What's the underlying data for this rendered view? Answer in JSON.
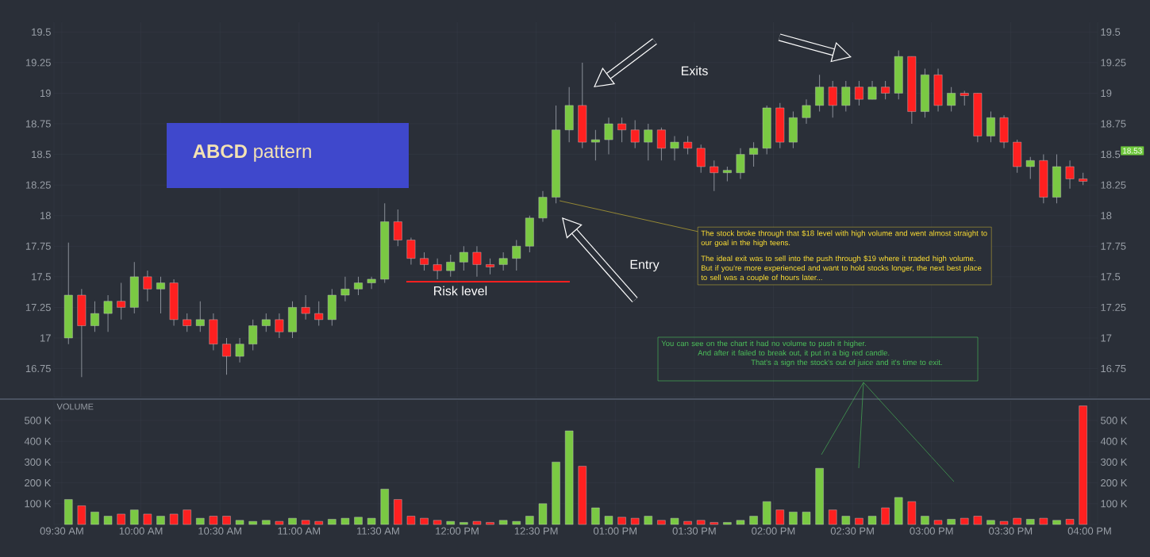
{
  "chart_data": [
    {
      "type": "candlestick",
      "x": [
        9.5417,
        9.625,
        9.7083,
        9.7917,
        9.875,
        9.9583,
        10.0417,
        10.125,
        10.2083,
        10.2917,
        10.375,
        10.4583,
        10.5417,
        10.625,
        10.7083,
        10.7917,
        10.875,
        10.9583,
        11.0417,
        11.125,
        11.2083,
        11.2917,
        11.375,
        11.4583,
        11.5417,
        11.625,
        11.7083,
        11.7917,
        11.875,
        11.9583,
        12.0417,
        12.125,
        12.2083,
        12.2917,
        12.375,
        12.4583,
        12.5417,
        12.625,
        12.7083,
        12.7917,
        12.875,
        12.9583,
        13.0417,
        13.125,
        13.2083,
        13.2917,
        13.375,
        13.4583,
        13.5417,
        13.625,
        13.7083,
        13.7917,
        13.875,
        13.9583,
        14.0417,
        14.125,
        14.2083,
        14.2917,
        14.375,
        14.4583,
        14.5417,
        14.625,
        14.7083,
        14.7917,
        14.875,
        14.9583,
        15.0417,
        15.125,
        15.2083,
        15.2917,
        15.375,
        15.4583,
        15.5417,
        15.625,
        15.7083,
        15.7917,
        15.875,
        15.9583
      ],
      "ohlc": [
        [
          17.0,
          17.78,
          16.95,
          17.35
        ],
        [
          17.35,
          17.4,
          16.68,
          17.1
        ],
        [
          17.1,
          17.3,
          17.05,
          17.2
        ],
        [
          17.2,
          17.35,
          17.05,
          17.3
        ],
        [
          17.3,
          17.45,
          17.15,
          17.25
        ],
        [
          17.25,
          17.62,
          17.2,
          17.5
        ],
        [
          17.5,
          17.55,
          17.3,
          17.4
        ],
        [
          17.4,
          17.5,
          17.2,
          17.45
        ],
        [
          17.45,
          17.48,
          17.1,
          17.15
        ],
        [
          17.15,
          17.2,
          17.05,
          17.1
        ],
        [
          17.1,
          17.3,
          17.05,
          17.15
        ],
        [
          17.15,
          17.2,
          16.9,
          16.95
        ],
        [
          16.95,
          17.0,
          16.7,
          16.85
        ],
        [
          16.85,
          17.0,
          16.8,
          16.95
        ],
        [
          16.95,
          17.15,
          16.9,
          17.1
        ],
        [
          17.1,
          17.2,
          17.05,
          17.15
        ],
        [
          17.15,
          17.2,
          17.0,
          17.05
        ],
        [
          17.05,
          17.3,
          17.0,
          17.25
        ],
        [
          17.25,
          17.35,
          17.15,
          17.2
        ],
        [
          17.2,
          17.3,
          17.1,
          17.15
        ],
        [
          17.15,
          17.4,
          17.1,
          17.35
        ],
        [
          17.35,
          17.5,
          17.3,
          17.4
        ],
        [
          17.4,
          17.5,
          17.35,
          17.45
        ],
        [
          17.45,
          17.5,
          17.4,
          17.48
        ],
        [
          17.48,
          18.1,
          17.45,
          17.95
        ],
        [
          17.95,
          18.05,
          17.75,
          17.8
        ],
        [
          17.8,
          17.82,
          17.6,
          17.65
        ],
        [
          17.65,
          17.7,
          17.55,
          17.6
        ],
        [
          17.6,
          17.65,
          17.48,
          17.55
        ],
        [
          17.55,
          17.68,
          17.5,
          17.62
        ],
        [
          17.62,
          17.75,
          17.55,
          17.7
        ],
        [
          17.7,
          17.75,
          17.5,
          17.6
        ],
        [
          17.6,
          17.65,
          17.52,
          17.58
        ],
        [
          17.6,
          17.7,
          17.55,
          17.65
        ],
        [
          17.65,
          17.8,
          17.55,
          17.75
        ],
        [
          17.75,
          18.0,
          17.7,
          17.98
        ],
        [
          17.98,
          18.2,
          17.95,
          18.15
        ],
        [
          18.15,
          18.9,
          18.1,
          18.7
        ],
        [
          18.7,
          19.05,
          18.6,
          18.9
        ],
        [
          18.9,
          19.25,
          18.55,
          18.6
        ],
        [
          18.6,
          18.7,
          18.45,
          18.62
        ],
        [
          18.62,
          18.8,
          18.5,
          18.75
        ],
        [
          18.75,
          18.8,
          18.6,
          18.7
        ],
        [
          18.7,
          18.78,
          18.55,
          18.6
        ],
        [
          18.6,
          18.75,
          18.45,
          18.7
        ],
        [
          18.7,
          18.72,
          18.45,
          18.55
        ],
        [
          18.55,
          18.65,
          18.45,
          18.6
        ],
        [
          18.6,
          18.65,
          18.5,
          18.55
        ],
        [
          18.55,
          18.58,
          18.35,
          18.4
        ],
        [
          18.4,
          18.45,
          18.2,
          18.35
        ],
        [
          18.35,
          18.4,
          18.28,
          18.37
        ],
        [
          18.35,
          18.55,
          18.3,
          18.5
        ],
        [
          18.5,
          18.6,
          18.4,
          18.55
        ],
        [
          18.55,
          18.9,
          18.5,
          18.88
        ],
        [
          18.88,
          18.92,
          18.55,
          18.6
        ],
        [
          18.6,
          18.85,
          18.55,
          18.8
        ],
        [
          18.8,
          18.95,
          18.75,
          18.9
        ],
        [
          18.9,
          19.15,
          18.85,
          19.05
        ],
        [
          19.05,
          19.1,
          18.8,
          18.9
        ],
        [
          18.9,
          19.1,
          18.85,
          19.05
        ],
        [
          19.05,
          19.1,
          18.9,
          18.95
        ],
        [
          18.95,
          19.1,
          18.95,
          19.05
        ],
        [
          19.05,
          19.1,
          18.95,
          19.0
        ],
        [
          19.0,
          19.35,
          18.95,
          19.3
        ],
        [
          19.3,
          19.3,
          18.75,
          18.85
        ],
        [
          18.85,
          19.2,
          18.8,
          19.15
        ],
        [
          19.15,
          19.2,
          18.85,
          18.9
        ],
        [
          18.9,
          19.05,
          18.85,
          19.0
        ],
        [
          19.0,
          19.02,
          18.9,
          18.98
        ],
        [
          19.0,
          19.0,
          18.6,
          18.65
        ],
        [
          18.65,
          18.85,
          18.6,
          18.8
        ],
        [
          18.8,
          18.82,
          18.55,
          18.6
        ],
        [
          18.6,
          18.62,
          18.35,
          18.4
        ],
        [
          18.4,
          18.48,
          18.3,
          18.45
        ],
        [
          18.45,
          18.5,
          18.1,
          18.15
        ],
        [
          18.15,
          18.5,
          18.1,
          18.4
        ],
        [
          18.4,
          18.45,
          18.22,
          18.3
        ],
        [
          18.3,
          18.35,
          18.25,
          18.28
        ]
      ],
      "colors": [
        "#7ac943",
        "#ff2020",
        "#7ac943",
        "#7ac943",
        "#ff2020",
        "#7ac943",
        "#ff2020",
        "#7ac943",
        "#ff2020",
        "#ff2020",
        "#7ac943",
        "#ff2020",
        "#ff2020",
        "#7ac943",
        "#7ac943",
        "#7ac943",
        "#ff2020",
        "#7ac943",
        "#ff2020",
        "#ff2020",
        "#7ac943",
        "#7ac943",
        "#7ac943",
        "#7ac943",
        "#7ac943",
        "#ff2020",
        "#ff2020",
        "#ff2020",
        "#ff2020",
        "#7ac943",
        "#7ac943",
        "#ff2020",
        "#ff2020",
        "#7ac943",
        "#7ac943",
        "#7ac943",
        "#7ac943",
        "#7ac943",
        "#7ac943",
        "#ff2020",
        "#7ac943",
        "#7ac943",
        "#ff2020",
        "#ff2020",
        "#7ac943",
        "#ff2020",
        "#7ac943",
        "#ff2020",
        "#ff2020",
        "#ff2020",
        "#7ac943",
        "#7ac943",
        "#7ac943",
        "#7ac943",
        "#ff2020",
        "#7ac943",
        "#7ac943",
        "#7ac943",
        "#ff2020",
        "#7ac943",
        "#ff2020",
        "#7ac943",
        "#ff2020",
        "#7ac943",
        "#ff2020",
        "#7ac943",
        "#ff2020",
        "#7ac943",
        "#ff2020",
        "#ff2020",
        "#7ac943",
        "#ff2020",
        "#ff2020",
        "#7ac943",
        "#ff2020",
        "#7ac943",
        "#ff2020",
        "#ff2020"
      ],
      "xlim": [
        9.45,
        16.05
      ],
      "xticks": [
        9.5,
        10,
        10.5,
        11,
        11.5,
        12,
        12.5,
        13,
        13.5,
        14,
        14.5,
        15,
        15.5,
        16
      ],
      "ylim": [
        16.52,
        19.58
      ],
      "yticks": [
        16.75,
        17,
        17.25,
        17.5,
        17.75,
        18,
        18.25,
        18.5,
        18.75,
        19,
        19.25,
        19.5
      ],
      "y2lim": [
        16.52,
        19.58
      ],
      "y2ticks": [
        16.75,
        17,
        17.25,
        17.5,
        17.75,
        18,
        18.25,
        18.5,
        18.75,
        19,
        19.25,
        19.5
      ],
      "tick_labels": "y",
      "grid": true,
      "ref_lines": [
        {
          "axis": "y",
          "value": 17.46,
          "label": "Risk level",
          "color": "#ff2020"
        }
      ],
      "annotations": [
        "**ABCD** pattern",
        "Exits",
        "Entry",
        "The stock broke through that $18 level with high volume and went almost straight to our goal in the high teens.",
        "The ideal exit was to sell into the push through $19 where it traded high volume.",
        "But if you're more experienced and want to hold stocks longer, the next best place to sell was a couple of hours later...",
        "18.53",
        "You can see on the chart it had no volume to push it higher.",
        "And after it failed to break out, it put in a big red candle.",
        "That's a sign the stock's out of juice and it's time to exit."
      ]
    },
    {
      "type": "bar",
      "x": [
        9.5417,
        9.625,
        9.7083,
        9.7917,
        9.875,
        9.9583,
        10.0417,
        10.125,
        10.2083,
        10.2917,
        10.375,
        10.4583,
        10.5417,
        10.625,
        10.7083,
        10.7917,
        10.875,
        10.9583,
        11.0417,
        11.125,
        11.2083,
        11.2917,
        11.375,
        11.4583,
        11.5417,
        11.625,
        11.7083,
        11.7917,
        11.875,
        11.9583,
        12.0417,
        12.125,
        12.2083,
        12.2917,
        12.375,
        12.4583,
        12.5417,
        12.625,
        12.7083,
        12.7917,
        12.875,
        12.9583,
        13.0417,
        13.125,
        13.2083,
        13.2917,
        13.375,
        13.4583,
        13.5417,
        13.625,
        13.7083,
        13.7917,
        13.875,
        13.9583,
        14.0417,
        14.125,
        14.2083,
        14.2917,
        14.375,
        14.4583,
        14.5417,
        14.625,
        14.7083,
        14.7917,
        14.875,
        14.9583,
        15.0417,
        15.125,
        15.2083,
        15.2917,
        15.375,
        15.4583,
        15.5417,
        15.625,
        15.7083,
        15.7917,
        15.875,
        15.9583
      ],
      "values": [
        120000,
        90000,
        60000,
        40000,
        50000,
        70000,
        50000,
        40000,
        50000,
        70000,
        30000,
        40000,
        40000,
        20000,
        15000,
        20000,
        15000,
        30000,
        20000,
        15000,
        25000,
        30000,
        35000,
        30000,
        170000,
        120000,
        40000,
        30000,
        20000,
        15000,
        10000,
        15000,
        10000,
        20000,
        15000,
        40000,
        100000,
        300000,
        450000,
        280000,
        80000,
        40000,
        35000,
        30000,
        40000,
        20000,
        30000,
        15000,
        20000,
        10000,
        10000,
        20000,
        40000,
        110000,
        70000,
        60000,
        60000,
        270000,
        70000,
        40000,
        30000,
        40000,
        80000,
        130000,
        110000,
        40000,
        20000,
        25000,
        30000,
        40000,
        20000,
        15000,
        30000,
        25000,
        30000,
        20000,
        25000,
        570000
      ],
      "colors": [
        "#7ac943",
        "#ff2020",
        "#7ac943",
        "#7ac943",
        "#ff2020",
        "#7ac943",
        "#ff2020",
        "#7ac943",
        "#ff2020",
        "#ff2020",
        "#7ac943",
        "#ff2020",
        "#ff2020",
        "#7ac943",
        "#7ac943",
        "#7ac943",
        "#ff2020",
        "#7ac943",
        "#ff2020",
        "#ff2020",
        "#7ac943",
        "#7ac943",
        "#7ac943",
        "#7ac943",
        "#7ac943",
        "#ff2020",
        "#ff2020",
        "#ff2020",
        "#ff2020",
        "#7ac943",
        "#7ac943",
        "#ff2020",
        "#ff2020",
        "#7ac943",
        "#7ac943",
        "#7ac943",
        "#7ac943",
        "#7ac943",
        "#7ac943",
        "#ff2020",
        "#7ac943",
        "#7ac943",
        "#ff2020",
        "#ff2020",
        "#7ac943",
        "#ff2020",
        "#7ac943",
        "#ff2020",
        "#ff2020",
        "#ff2020",
        "#7ac943",
        "#7ac943",
        "#7ac943",
        "#7ac943",
        "#ff2020",
        "#7ac943",
        "#7ac943",
        "#7ac943",
        "#ff2020",
        "#7ac943",
        "#ff2020",
        "#7ac943",
        "#ff2020",
        "#7ac943",
        "#ff2020",
        "#7ac943",
        "#ff2020",
        "#7ac943",
        "#ff2020",
        "#ff2020",
        "#7ac943",
        "#ff2020",
        "#ff2020",
        "#7ac943",
        "#ff2020",
        "#7ac943",
        "#ff2020",
        "#ff2020"
      ],
      "ylabel": "VOLUME",
      "xlim": [
        9.45,
        16.05
      ],
      "xticks": [
        {
          "value": 9.5,
          "label": "09:30 AM"
        },
        {
          "value": 10,
          "label": "10:00 AM"
        },
        {
          "value": 10.5,
          "label": "10:30 AM"
        },
        {
          "value": 11,
          "label": "11:00 AM"
        },
        {
          "value": 11.5,
          "label": "11:30 AM"
        },
        {
          "value": 12,
          "label": "12:00 PM"
        },
        {
          "value": 12.5,
          "label": "12:30 PM"
        },
        {
          "value": 13,
          "label": "01:00 PM"
        },
        {
          "value": 13.5,
          "label": "01:30 PM"
        },
        {
          "value": 14,
          "label": "02:00 PM"
        },
        {
          "value": 14.5,
          "label": "02:30 PM"
        },
        {
          "value": 15,
          "label": "03:00 PM"
        },
        {
          "value": 15.5,
          "label": "03:30 PM"
        },
        {
          "value": 16,
          "label": "04:00 PM"
        }
      ],
      "ylim": [
        0,
        595000
      ],
      "yticks": [
        {
          "value": 100000,
          "label": "100 K"
        },
        {
          "value": 200000,
          "label": "200 K"
        },
        {
          "value": 300000,
          "label": "300 K"
        },
        {
          "value": 400000,
          "label": "400 K"
        },
        {
          "value": 500000,
          "label": "500 K"
        }
      ],
      "y2lim": [
        0,
        595000
      ],
      "y2ticks": [
        {
          "value": 100000,
          "label": "100 K"
        },
        {
          "value": 200000,
          "label": "200 K"
        },
        {
          "value": 300000,
          "label": "300 K"
        },
        {
          "value": 400000,
          "label": "400 K"
        },
        {
          "value": 500000,
          "label": "500 K"
        }
      ],
      "grid": true
    }
  ]
}
